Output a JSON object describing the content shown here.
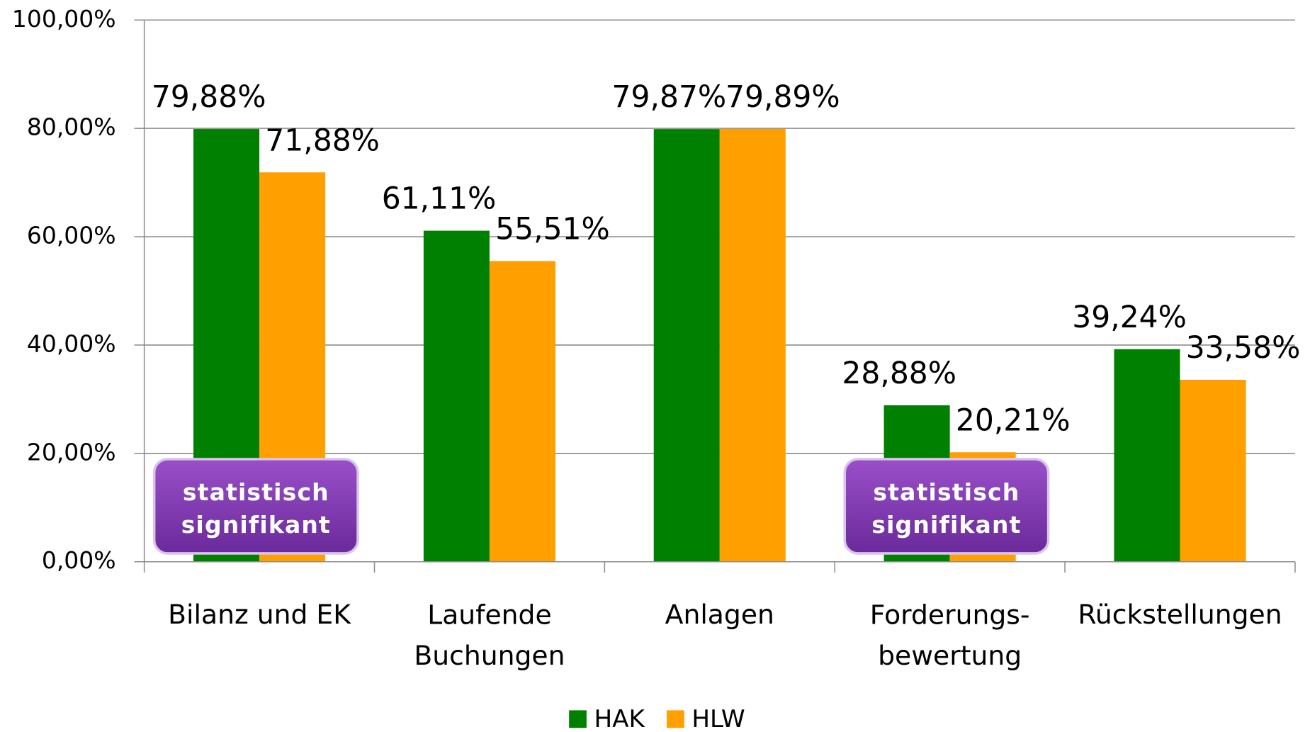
{
  "chart_data": {
    "type": "bar",
    "categories": [
      "Bilanz und EK",
      "Laufende\nBuchungen",
      "Anlagen",
      "Forderungs-\nbewertung",
      "Rückstellungen"
    ],
    "series": [
      {
        "name": "HAK",
        "color": "#008000",
        "values": [
          79.88,
          61.11,
          79.87,
          28.88,
          39.24
        ],
        "value_labels": [
          "79,88%",
          "61,11%",
          "79,87%",
          "28,88%",
          "39,24%"
        ]
      },
      {
        "name": "HLW",
        "color": "#ff9f00",
        "values": [
          71.88,
          55.51,
          79.89,
          20.21,
          33.58
        ],
        "value_labels": [
          "71,88%",
          "55,51%",
          "79,89%",
          "20,21%",
          "33,58%"
        ]
      }
    ],
    "ylim": [
      0,
      100
    ],
    "yticks": [
      {
        "value": 0,
        "label": "0,00%"
      },
      {
        "value": 20,
        "label": "20,00%"
      },
      {
        "value": 40,
        "label": "40,00%"
      },
      {
        "value": 60,
        "label": "60,00%"
      },
      {
        "value": 80,
        "label": "80,00%"
      },
      {
        "value": 100,
        "label": "100,00%"
      }
    ],
    "grid": true,
    "legend": "bottom",
    "annotations": [
      {
        "category": 0,
        "text": "statistisch\nsignifikant"
      },
      {
        "category": 3,
        "text": "statistisch\nsignifikant"
      }
    ]
  }
}
